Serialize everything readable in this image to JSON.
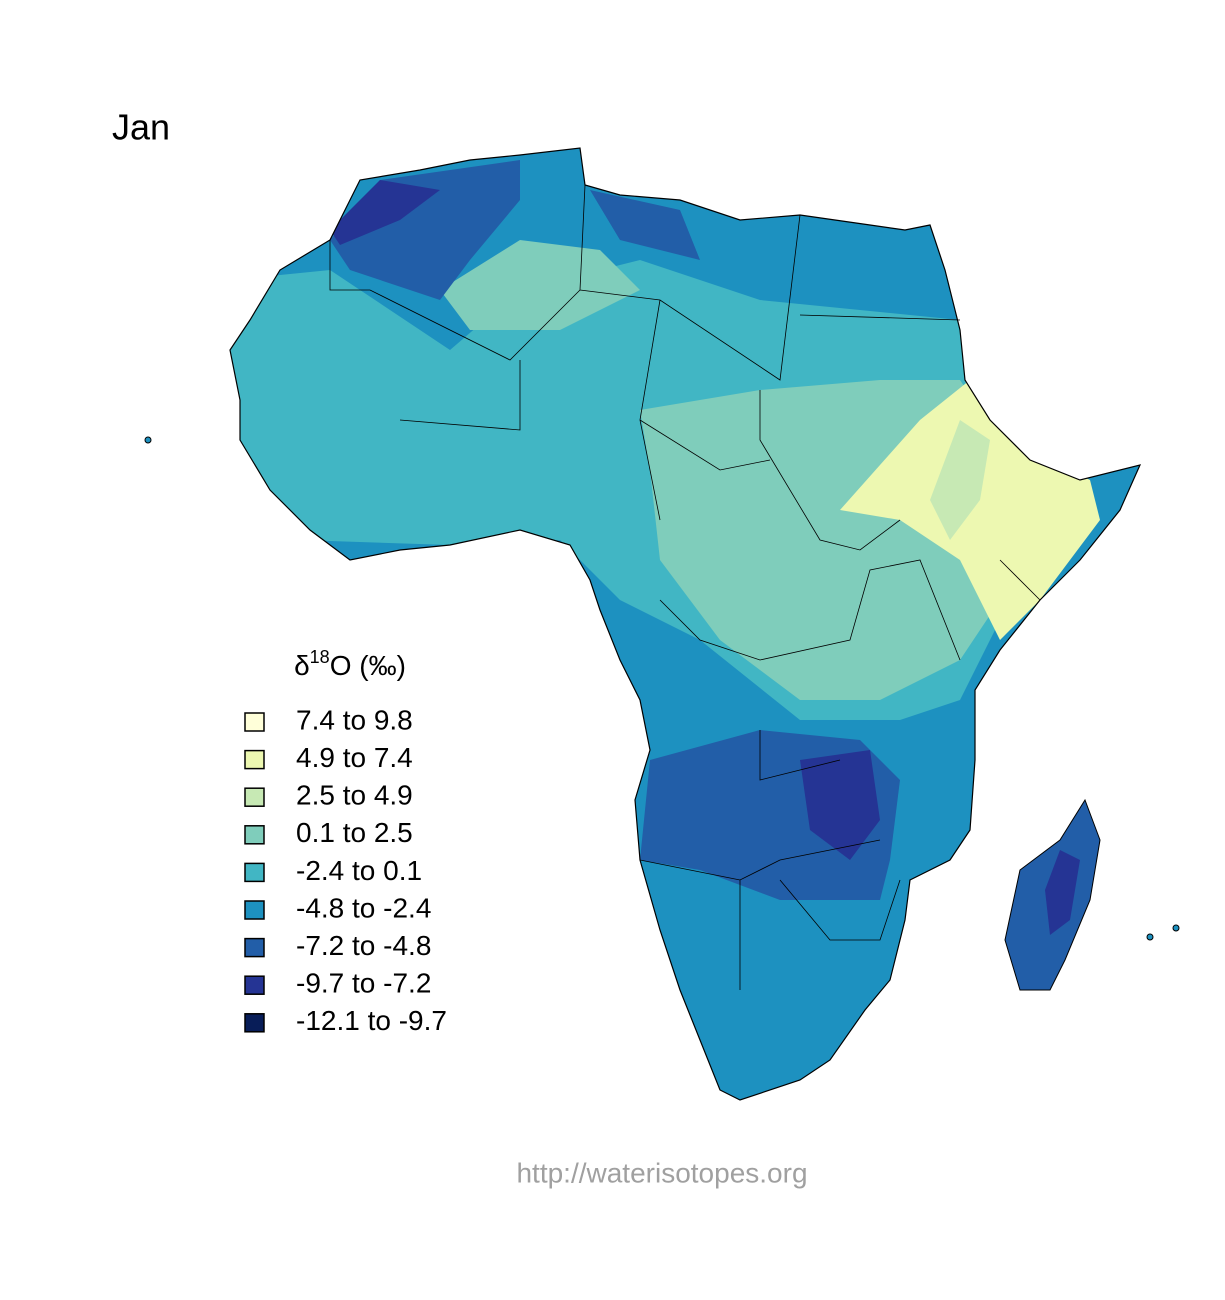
{
  "title": "Jan",
  "legend": {
    "title": {
      "symbol": "δ",
      "superscript": "18",
      "rest": "O (‰)"
    },
    "entries": [
      {
        "label": "7.4 to 9.8",
        "color": "#ffffd9"
      },
      {
        "label": "4.9 to 7.4",
        "color": "#edf8b1"
      },
      {
        "label": "2.5 to 4.9",
        "color": "#c7e9b4"
      },
      {
        "label": "0.1 to 2.5",
        "color": "#7fcdbb"
      },
      {
        "label": "-2.4 to 0.1",
        "color": "#41b6c4"
      },
      {
        "label": "-4.8 to -2.4",
        "color": "#1d91c0"
      },
      {
        "label": "-7.2 to -4.8",
        "color": "#225ea8"
      },
      {
        "label": "-9.7 to -7.2",
        "color": "#253494"
      },
      {
        "label": "-12.1 to -9.7",
        "color": "#081d58"
      }
    ]
  },
  "footer": "http://waterisotopes.org"
}
